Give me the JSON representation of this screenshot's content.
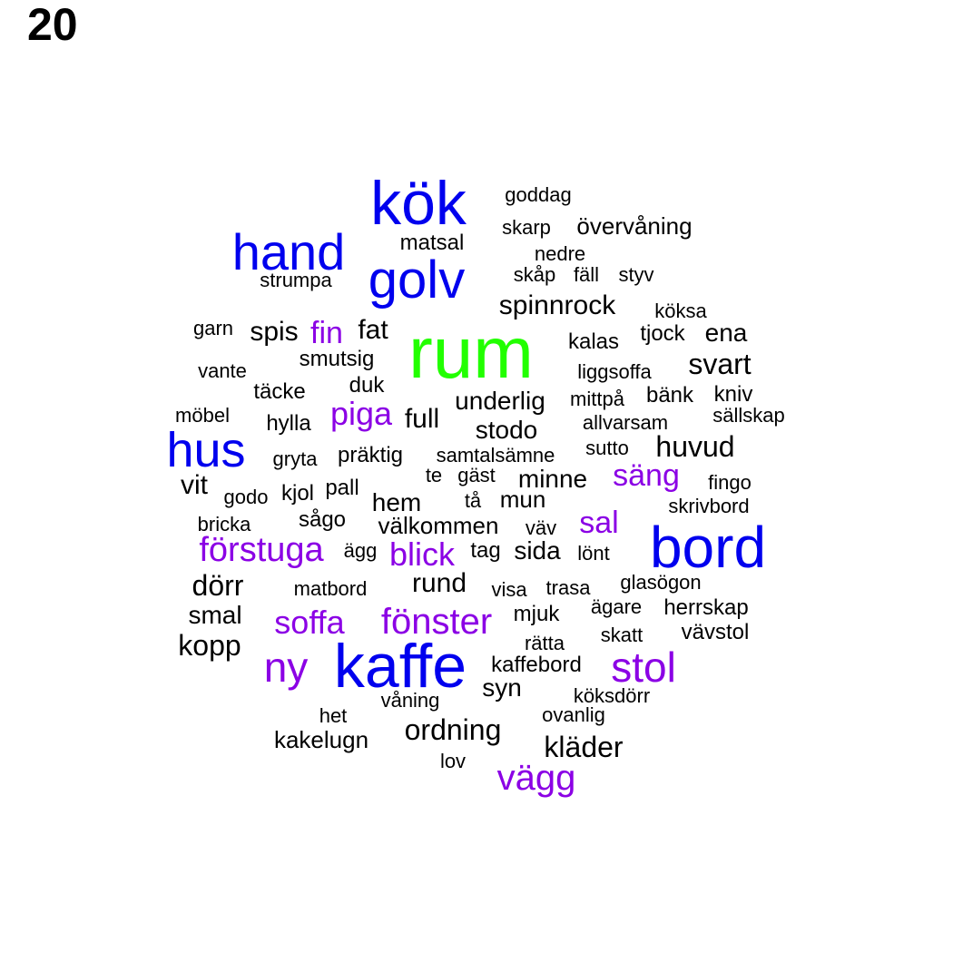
{
  "title": "20",
  "colors": {
    "black": "#000000",
    "purple": "#8b00e5",
    "blue": "#0000ee",
    "green": "#22ff00"
  },
  "words": [
    {
      "text": "rum",
      "color": "green"
    },
    {
      "text": "kök",
      "color": "blue"
    },
    {
      "text": "kaffe",
      "color": "blue"
    },
    {
      "text": "bord",
      "color": "blue"
    },
    {
      "text": "golv",
      "color": "blue"
    },
    {
      "text": "hand",
      "color": "blue"
    },
    {
      "text": "hus",
      "color": "blue"
    },
    {
      "text": "stol",
      "color": "purple"
    },
    {
      "text": "ny",
      "color": "purple"
    },
    {
      "text": "fönster",
      "color": "purple"
    },
    {
      "text": "vägg",
      "color": "purple"
    },
    {
      "text": "förstuga",
      "color": "purple"
    },
    {
      "text": "soffa",
      "color": "purple"
    },
    {
      "text": "blick",
      "color": "purple"
    },
    {
      "text": "piga",
      "color": "purple"
    },
    {
      "text": "säng",
      "color": "purple"
    },
    {
      "text": "sal",
      "color": "purple"
    },
    {
      "text": "fin",
      "color": "purple"
    },
    {
      "text": "ordning",
      "color": "black"
    },
    {
      "text": "kläder",
      "color": "black"
    },
    {
      "text": "huvud",
      "color": "black"
    },
    {
      "text": "kopp",
      "color": "black"
    },
    {
      "text": "svart",
      "color": "black"
    },
    {
      "text": "dörr",
      "color": "black"
    },
    {
      "text": "rund",
      "color": "black"
    },
    {
      "text": "spinnrock",
      "color": "black"
    },
    {
      "text": "underlig",
      "color": "black"
    },
    {
      "text": "stodo",
      "color": "black"
    },
    {
      "text": "ena",
      "color": "black"
    },
    {
      "text": "sida",
      "color": "black"
    },
    {
      "text": "smal",
      "color": "black"
    },
    {
      "text": "minne",
      "color": "black"
    },
    {
      "text": "hem",
      "color": "black"
    },
    {
      "text": "välkommen",
      "color": "black"
    },
    {
      "text": "mun",
      "color": "black"
    },
    {
      "text": "spis",
      "color": "black"
    },
    {
      "text": "fat",
      "color": "black"
    },
    {
      "text": "full",
      "color": "black"
    },
    {
      "text": "vit",
      "color": "black"
    },
    {
      "text": "syn",
      "color": "black"
    },
    {
      "text": "kakelugn",
      "color": "black"
    },
    {
      "text": "mjuk",
      "color": "black"
    },
    {
      "text": "tag",
      "color": "black"
    },
    {
      "text": "vävstol",
      "color": "black"
    },
    {
      "text": "matsal",
      "color": "black"
    },
    {
      "text": "övervåning",
      "color": "black"
    },
    {
      "text": "kaffebord",
      "color": "black"
    },
    {
      "text": "herrskap",
      "color": "black"
    },
    {
      "text": "kniv",
      "color": "black"
    },
    {
      "text": "bänk",
      "color": "black"
    },
    {
      "text": "hylla",
      "color": "black"
    },
    {
      "text": "smutsig",
      "color": "black"
    },
    {
      "text": "täcke",
      "color": "black"
    },
    {
      "text": "duk",
      "color": "black"
    },
    {
      "text": "sågo",
      "color": "black"
    },
    {
      "text": "pall",
      "color": "black"
    },
    {
      "text": "kjol",
      "color": "black"
    },
    {
      "text": "präktig",
      "color": "black"
    },
    {
      "text": "kalas",
      "color": "black"
    },
    {
      "text": "tjock",
      "color": "black"
    },
    {
      "text": "goddag",
      "color": "black"
    },
    {
      "text": "skarp",
      "color": "black"
    },
    {
      "text": "nedre",
      "color": "black"
    },
    {
      "text": "skåp",
      "color": "black"
    },
    {
      "text": "fäll",
      "color": "black"
    },
    {
      "text": "styv",
      "color": "black"
    },
    {
      "text": "köksa",
      "color": "black"
    },
    {
      "text": "strumpa",
      "color": "black"
    },
    {
      "text": "garn",
      "color": "black"
    },
    {
      "text": "vante",
      "color": "black"
    },
    {
      "text": "möbel",
      "color": "black"
    },
    {
      "text": "liggsoffa",
      "color": "black"
    },
    {
      "text": "mittpå",
      "color": "black"
    },
    {
      "text": "allvarsam",
      "color": "black"
    },
    {
      "text": "sällskap",
      "color": "black"
    },
    {
      "text": "sutto",
      "color": "black"
    },
    {
      "text": "samtalsämne",
      "color": "black"
    },
    {
      "text": "gryta",
      "color": "black"
    },
    {
      "text": "te",
      "color": "black"
    },
    {
      "text": "gäst",
      "color": "black"
    },
    {
      "text": "fingo",
      "color": "black"
    },
    {
      "text": "skrivbord",
      "color": "black"
    },
    {
      "text": "godo",
      "color": "black"
    },
    {
      "text": "tå",
      "color": "black"
    },
    {
      "text": "bricka",
      "color": "black"
    },
    {
      "text": "väv",
      "color": "black"
    },
    {
      "text": "ägg",
      "color": "black"
    },
    {
      "text": "lönt",
      "color": "black"
    },
    {
      "text": "glasögon",
      "color": "black"
    },
    {
      "text": "matbord",
      "color": "black"
    },
    {
      "text": "visa",
      "color": "black"
    },
    {
      "text": "trasa",
      "color": "black"
    },
    {
      "text": "ägare",
      "color": "black"
    },
    {
      "text": "skatt",
      "color": "black"
    },
    {
      "text": "rätta",
      "color": "black"
    },
    {
      "text": "våning",
      "color": "black"
    },
    {
      "text": "köksdörr",
      "color": "black"
    },
    {
      "text": "het",
      "color": "black"
    },
    {
      "text": "ovanlig",
      "color": "black"
    },
    {
      "text": "lov",
      "color": "black"
    }
  ]
}
